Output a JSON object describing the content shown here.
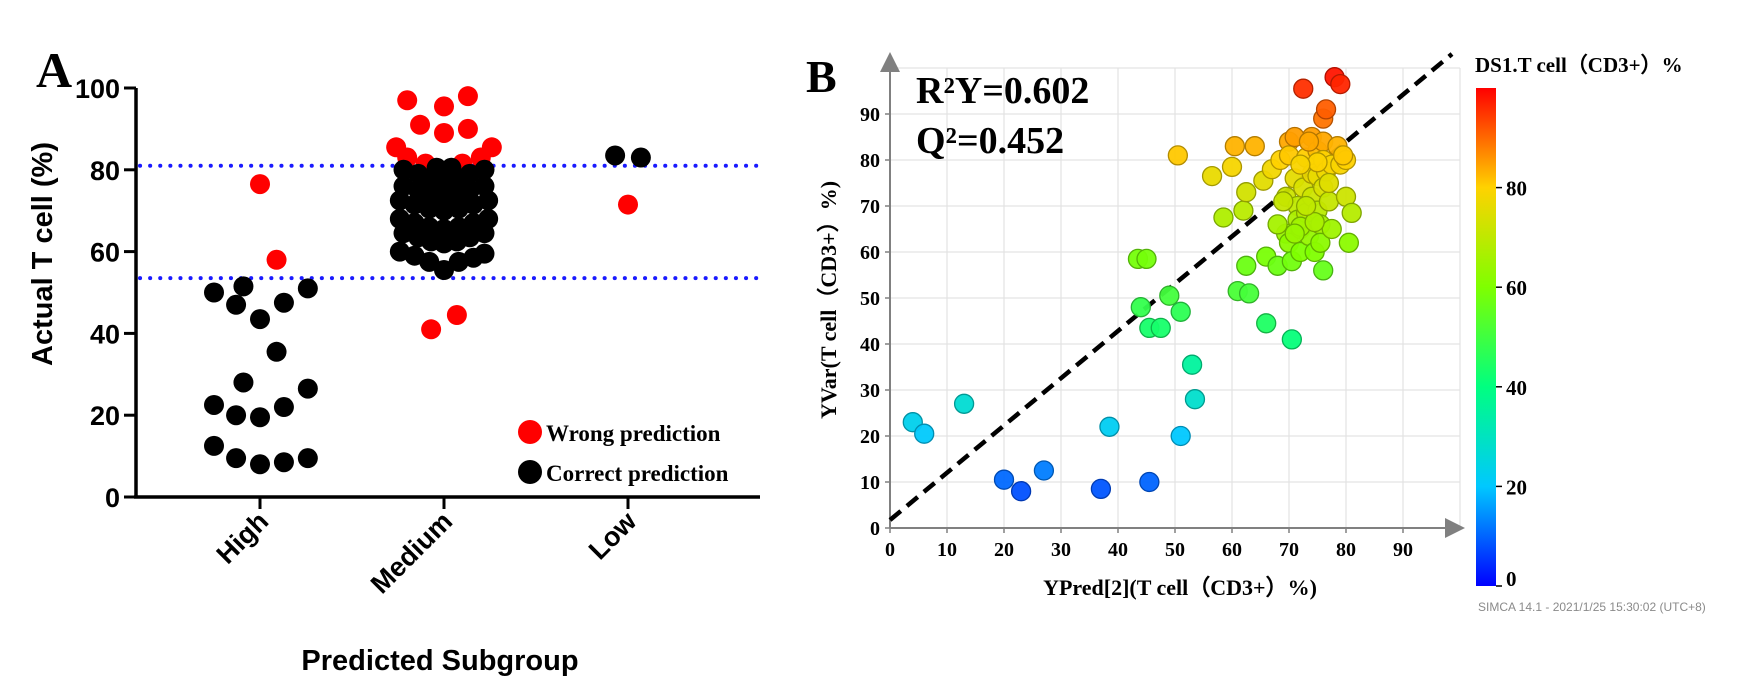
{
  "chart_data": [
    {
      "panel_label": "A",
      "type": "scatter",
      "ylabel": "Actual T cell (%)",
      "xlabel": "Predicted Subgroup",
      "categories": [
        "High",
        "Medium",
        "Low"
      ],
      "ylim": [
        0,
        100
      ],
      "yticks": [
        "0",
        "20",
        "40",
        "60",
        "80",
        "100"
      ],
      "thresholds": [
        81,
        53.5
      ],
      "threshold_color": "#1a1aff",
      "legend": [
        {
          "label": "Wrong prediction",
          "color": "#ff0000"
        },
        {
          "label": "Correct prediction",
          "color": "#000000"
        }
      ],
      "series": [
        {
          "name": "Wrong prediction",
          "color": "#ff0000",
          "points": [
            {
              "cat": "High",
              "dx": 0.0,
              "y": 76.5
            },
            {
              "cat": "High",
              "dx": 0.09,
              "y": 58
            },
            {
              "cat": "Medium",
              "dx": -0.2,
              "y": 97
            },
            {
              "cat": "Medium",
              "dx": 0.0,
              "y": 95.5
            },
            {
              "cat": "Medium",
              "dx": 0.13,
              "y": 98
            },
            {
              "cat": "Medium",
              "dx": -0.13,
              "y": 91
            },
            {
              "cat": "Medium",
              "dx": 0.13,
              "y": 90
            },
            {
              "cat": "Medium",
              "dx": 0.0,
              "y": 89
            },
            {
              "cat": "Medium",
              "dx": -0.26,
              "y": 85.5
            },
            {
              "cat": "Medium",
              "dx": 0.26,
              "y": 85.5
            },
            {
              "cat": "Medium",
              "dx": -0.2,
              "y": 83
            },
            {
              "cat": "Medium",
              "dx": 0.2,
              "y": 83
            },
            {
              "cat": "Medium",
              "dx": -0.1,
              "y": 81.5
            },
            {
              "cat": "Medium",
              "dx": 0.1,
              "y": 81.5
            },
            {
              "cat": "Medium",
              "dx": -0.07,
              "y": 41
            },
            {
              "cat": "Medium",
              "dx": 0.07,
              "y": 44.5
            },
            {
              "cat": "Low",
              "dx": 0.0,
              "y": 71.5
            }
          ]
        },
        {
          "name": "Correct prediction",
          "color": "#000000",
          "points": [
            {
              "cat": "High",
              "dx": -0.25,
              "y": 50
            },
            {
              "cat": "High",
              "dx": -0.09,
              "y": 51.5
            },
            {
              "cat": "High",
              "dx": 0.26,
              "y": 51
            },
            {
              "cat": "High",
              "dx": -0.13,
              "y": 47
            },
            {
              "cat": "High",
              "dx": 0.13,
              "y": 47.5
            },
            {
              "cat": "High",
              "dx": 0.0,
              "y": 43.5
            },
            {
              "cat": "High",
              "dx": 0.09,
              "y": 35.5
            },
            {
              "cat": "High",
              "dx": -0.09,
              "y": 28
            },
            {
              "cat": "High",
              "dx": 0.26,
              "y": 26.5
            },
            {
              "cat": "High",
              "dx": -0.25,
              "y": 22.5
            },
            {
              "cat": "High",
              "dx": 0.13,
              "y": 22
            },
            {
              "cat": "High",
              "dx": -0.13,
              "y": 20
            },
            {
              "cat": "High",
              "dx": 0.0,
              "y": 19.5
            },
            {
              "cat": "High",
              "dx": -0.25,
              "y": 12.5
            },
            {
              "cat": "High",
              "dx": -0.13,
              "y": 9.5
            },
            {
              "cat": "High",
              "dx": 0.0,
              "y": 8
            },
            {
              "cat": "High",
              "dx": 0.13,
              "y": 8.5
            },
            {
              "cat": "High",
              "dx": 0.26,
              "y": 9.5
            },
            {
              "cat": "Medium",
              "dx": -0.22,
              "y": 80
            },
            {
              "cat": "Medium",
              "dx": -0.14,
              "y": 79
            },
            {
              "cat": "Medium",
              "dx": -0.07,
              "y": 78
            },
            {
              "cat": "Medium",
              "dx": 0.0,
              "y": 77
            },
            {
              "cat": "Medium",
              "dx": 0.07,
              "y": 78
            },
            {
              "cat": "Medium",
              "dx": 0.14,
              "y": 79
            },
            {
              "cat": "Medium",
              "dx": 0.22,
              "y": 80
            },
            {
              "cat": "Medium",
              "dx": -0.04,
              "y": 80.5
            },
            {
              "cat": "Medium",
              "dx": 0.04,
              "y": 80.5
            },
            {
              "cat": "Medium",
              "dx": -0.22,
              "y": 76
            },
            {
              "cat": "Medium",
              "dx": -0.14,
              "y": 75
            },
            {
              "cat": "Medium",
              "dx": -0.07,
              "y": 74
            },
            {
              "cat": "Medium",
              "dx": 0.0,
              "y": 73.5
            },
            {
              "cat": "Medium",
              "dx": 0.07,
              "y": 74
            },
            {
              "cat": "Medium",
              "dx": 0.14,
              "y": 75
            },
            {
              "cat": "Medium",
              "dx": 0.22,
              "y": 76
            },
            {
              "cat": "Medium",
              "dx": -0.24,
              "y": 72.5
            },
            {
              "cat": "Medium",
              "dx": -0.16,
              "y": 71.5
            },
            {
              "cat": "Medium",
              "dx": -0.08,
              "y": 70.5
            },
            {
              "cat": "Medium",
              "dx": 0.0,
              "y": 70
            },
            {
              "cat": "Medium",
              "dx": 0.08,
              "y": 70.5
            },
            {
              "cat": "Medium",
              "dx": 0.16,
              "y": 71.5
            },
            {
              "cat": "Medium",
              "dx": 0.24,
              "y": 72.5
            },
            {
              "cat": "Medium",
              "dx": -0.24,
              "y": 68
            },
            {
              "cat": "Medium",
              "dx": -0.16,
              "y": 67
            },
            {
              "cat": "Medium",
              "dx": -0.08,
              "y": 66
            },
            {
              "cat": "Medium",
              "dx": 0.0,
              "y": 65.5
            },
            {
              "cat": "Medium",
              "dx": 0.08,
              "y": 66
            },
            {
              "cat": "Medium",
              "dx": 0.16,
              "y": 67
            },
            {
              "cat": "Medium",
              "dx": 0.24,
              "y": 68
            },
            {
              "cat": "Medium",
              "dx": -0.22,
              "y": 64.5
            },
            {
              "cat": "Medium",
              "dx": -0.14,
              "y": 63.5
            },
            {
              "cat": "Medium",
              "dx": -0.07,
              "y": 62.5
            },
            {
              "cat": "Medium",
              "dx": 0.0,
              "y": 62
            },
            {
              "cat": "Medium",
              "dx": 0.07,
              "y": 62.5
            },
            {
              "cat": "Medium",
              "dx": 0.14,
              "y": 63.5
            },
            {
              "cat": "Medium",
              "dx": 0.22,
              "y": 64.5
            },
            {
              "cat": "Medium",
              "dx": -0.24,
              "y": 60
            },
            {
              "cat": "Medium",
              "dx": -0.16,
              "y": 59
            },
            {
              "cat": "Medium",
              "dx": -0.08,
              "y": 57.5
            },
            {
              "cat": "Medium",
              "dx": 0.0,
              "y": 55.5
            },
            {
              "cat": "Medium",
              "dx": 0.08,
              "y": 57.5
            },
            {
              "cat": "Medium",
              "dx": 0.16,
              "y": 58.5
            },
            {
              "cat": "Medium",
              "dx": 0.22,
              "y": 59.5
            },
            {
              "cat": "Low",
              "dx": -0.07,
              "y": 83.5
            },
            {
              "cat": "Low",
              "dx": 0.07,
              "y": 83
            }
          ]
        }
      ]
    },
    {
      "panel_label": "B",
      "type": "scatter",
      "xlabel": "YPred[2](T cell（CD3+）%)",
      "ylabel": "YVar(T cell（CD3+）%)",
      "xlim": [
        0,
        100
      ],
      "ylim": [
        0,
        100
      ],
      "xticks": [
        "0",
        "10",
        "20",
        "30",
        "40",
        "50",
        "60",
        "70",
        "80",
        "90"
      ],
      "yticks": [
        "0",
        "10",
        "20",
        "30",
        "40",
        "50",
        "60",
        "70",
        "80",
        "90"
      ],
      "annotation_r2": "R²Y=0.602",
      "annotation_q2": "Q²=0.452",
      "diagonal": "y = x",
      "colorbar": {
        "title": "DS1.T cell（CD3+）%",
        "range": [
          0,
          100
        ],
        "ticks": [
          "0",
          "20",
          "40",
          "60",
          "80"
        ]
      },
      "footer": "SIMCA 14.1 - 2021/1/25 15:30:02 (UTC+8)",
      "points": [
        [
          4,
          23
        ],
        [
          6,
          20.5
        ],
        [
          13,
          27
        ],
        [
          20,
          10.5
        ],
        [
          23,
          8
        ],
        [
          27,
          12.5
        ],
        [
          37,
          8.5
        ],
        [
          38.5,
          22
        ],
        [
          45.5,
          10
        ],
        [
          51,
          20
        ],
        [
          53,
          35.5
        ],
        [
          53.5,
          28
        ],
        [
          43.5,
          58.5
        ],
        [
          45,
          58.5
        ],
        [
          44,
          48
        ],
        [
          45.5,
          43.5
        ],
        [
          47.5,
          43.5
        ],
        [
          49,
          50.5
        ],
        [
          51,
          47
        ],
        [
          50.5,
          81
        ],
        [
          56.5,
          76.5
        ],
        [
          58.5,
          67.5
        ],
        [
          60.5,
          83
        ],
        [
          60,
          78.5
        ],
        [
          61,
          51.5
        ],
        [
          62,
          69
        ],
        [
          62.5,
          57
        ],
        [
          63,
          51
        ],
        [
          62.5,
          73
        ],
        [
          64,
          83
        ],
        [
          65.5,
          75.5
        ],
        [
          66,
          59
        ],
        [
          66,
          44.5
        ],
        [
          67,
          78
        ],
        [
          68,
          57
        ],
        [
          68.5,
          80
        ],
        [
          69.5,
          72
        ],
        [
          69.5,
          64
        ],
        [
          70,
          62
        ],
        [
          70,
          84
        ],
        [
          70,
          81
        ],
        [
          70.5,
          58
        ],
        [
          70.5,
          41
        ],
        [
          71,
          76
        ],
        [
          71.5,
          70
        ],
        [
          71.5,
          67
        ],
        [
          72,
          60
        ],
        [
          72,
          65
        ],
        [
          72.5,
          95.5
        ],
        [
          72.5,
          74
        ],
        [
          73,
          80.5
        ],
        [
          73,
          68.5
        ],
        [
          73.5,
          63.5
        ],
        [
          74,
          85
        ],
        [
          74,
          77
        ],
        [
          74,
          72
        ],
        [
          74.5,
          60
        ],
        [
          75,
          82
        ],
        [
          75,
          76.5
        ],
        [
          75,
          69
        ],
        [
          75.5,
          66
        ],
        [
          75.5,
          62
        ],
        [
          76,
          89
        ],
        [
          76,
          84
        ],
        [
          76,
          80
        ],
        [
          76,
          74
        ],
        [
          76,
          56
        ],
        [
          76.5,
          91
        ],
        [
          76.5,
          77.5
        ],
        [
          77,
          71
        ],
        [
          77.5,
          65
        ],
        [
          77.5,
          79
        ],
        [
          78,
          98
        ],
        [
          78.5,
          83
        ],
        [
          79,
          96.5
        ],
        [
          79,
          79
        ],
        [
          80,
          80
        ],
        [
          80,
          72
        ],
        [
          80.5,
          62
        ],
        [
          81,
          68.5
        ],
        [
          72,
          65.5
        ],
        [
          74.5,
          66.5
        ],
        [
          73,
          70
        ],
        [
          69,
          71
        ],
        [
          68,
          66
        ],
        [
          71,
          85
        ],
        [
          75,
          79.5
        ],
        [
          79.5,
          81
        ],
        [
          72,
          79
        ],
        [
          73.5,
          84
        ],
        [
          77,
          75
        ],
        [
          71,
          64
        ]
      ]
    }
  ]
}
